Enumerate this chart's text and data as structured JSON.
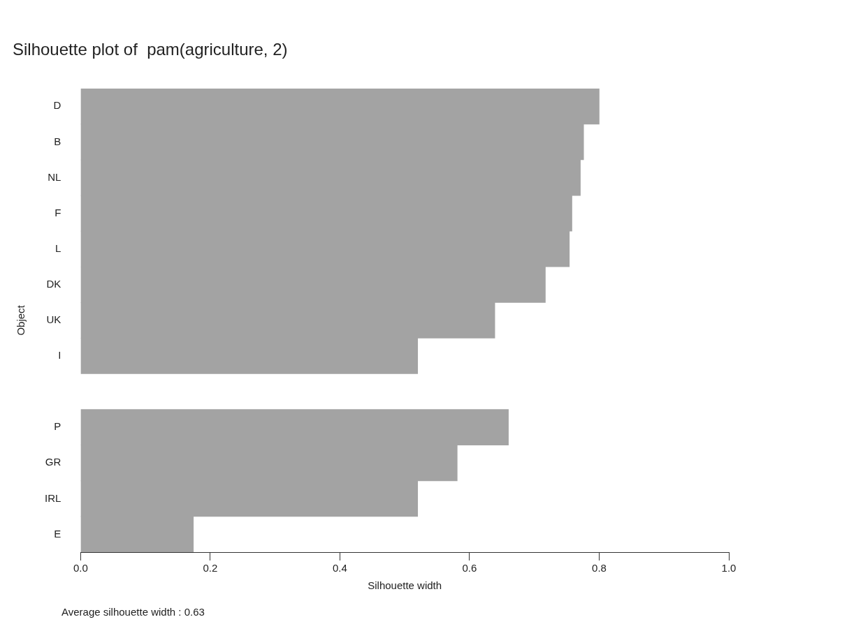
{
  "chart_data": {
    "type": "bar",
    "orientation": "horizontal",
    "title": "Silhouette plot of  pam(agriculture, 2)",
    "xlabel": "Silhouette width",
    "ylabel": "Object",
    "categories": [
      "D",
      "B",
      "NL",
      "F",
      "L",
      "DK",
      "UK",
      "I",
      null,
      "P",
      "GR",
      "IRL",
      "E"
    ],
    "values": [
      0.8,
      0.776,
      0.771,
      0.758,
      0.754,
      0.717,
      0.639,
      0.52,
      null,
      0.66,
      0.581,
      0.52,
      0.174
    ],
    "color": "#a3a3a3",
    "xlim": [
      0,
      1
    ],
    "xticks": [
      {
        "value": 0,
        "label": "0.0"
      },
      {
        "value": 0.2,
        "label": "0.2"
      },
      {
        "value": 0.4,
        "label": "0.4"
      },
      {
        "value": 0.6,
        "label": "0.6"
      },
      {
        "value": 0.8,
        "label": "0.8"
      },
      {
        "value": 1,
        "label": "1.0"
      }
    ],
    "grid": false,
    "legend": false,
    "annotations": [
      "Average silhouette width : 0.63"
    ]
  }
}
